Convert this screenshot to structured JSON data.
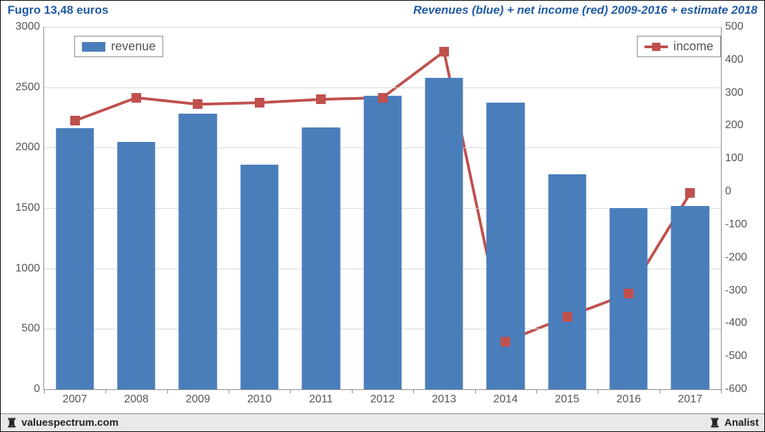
{
  "header": {
    "left": "Fugro 13,48 euros",
    "right": "Revenues (blue) + net income (red) 2009-2016 + estimate 2018",
    "color": "#1f5aa6"
  },
  "footer": {
    "left": "valuespectrum.com",
    "right": "Analist",
    "icon": "♜",
    "bg": "#e9e9e9"
  },
  "chart": {
    "type": "bar+line",
    "background_color": "#ffffff",
    "grid_color": "#d9d9d9",
    "axis_color": "#888888",
    "tick_fontsize": 16,
    "tick_color": "#555555",
    "categories": [
      "2007",
      "2008",
      "2009",
      "2010",
      "2011",
      "2012",
      "2013",
      "2014",
      "2015",
      "2016",
      "2017"
    ],
    "left_axis": {
      "min": 0,
      "max": 3000,
      "step": 500
    },
    "right_axis": {
      "min": -600,
      "max": 500,
      "step": 100
    },
    "bars": {
      "label": "revenue",
      "color": "#4a7ebb",
      "width_frac": 0.62,
      "values": [
        2160,
        2050,
        2280,
        1860,
        2170,
        2430,
        2580,
        2370,
        1780,
        1500,
        1520
      ]
    },
    "line": {
      "label": "income",
      "color": "#c0504d",
      "line_width": 4,
      "marker_size": 14,
      "values": [
        215,
        285,
        265,
        270,
        280,
        285,
        425,
        -455,
        -380,
        -310,
        -5
      ]
    },
    "legend": {
      "revenue": {
        "left_pct": 4.5,
        "top_pct": 2.5
      },
      "income": {
        "right_pct": 0,
        "top_pct": 2.5
      }
    }
  }
}
